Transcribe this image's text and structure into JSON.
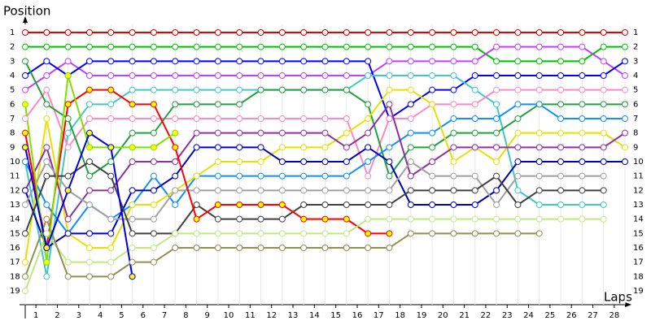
{
  "chart_data": {
    "type": "line",
    "y_label": "Position",
    "x_label": "Laps",
    "xlim": [
      0,
      28
    ],
    "ylim": [
      1,
      19
    ],
    "y_reversed": true,
    "grid": true,
    "x": [
      0,
      1,
      2,
      3,
      4,
      5,
      6,
      7,
      8,
      9,
      10,
      11,
      12,
      13,
      14,
      15,
      16,
      17,
      18,
      19,
      20,
      21,
      22,
      23,
      24,
      25,
      26,
      27,
      28
    ],
    "xticks": [
      {
        "value": 0.5,
        "label": "1"
      },
      {
        "value": 1.5,
        "label": "2"
      },
      {
        "value": 2.5,
        "label": "3"
      },
      {
        "value": 3.5,
        "label": "4"
      },
      {
        "value": 4.5,
        "label": "5"
      },
      {
        "value": 5.5,
        "label": "6"
      },
      {
        "value": 6.5,
        "label": "7"
      },
      {
        "value": 7.5,
        "label": "8"
      },
      {
        "value": 8.5,
        "label": "9"
      },
      {
        "value": 9.5,
        "label": "10"
      },
      {
        "value": 10.5,
        "label": "11"
      },
      {
        "value": 11.5,
        "label": "12"
      },
      {
        "value": 12.5,
        "label": "13"
      },
      {
        "value": 13.5,
        "label": "14"
      },
      {
        "value": 14.5,
        "label": "15"
      },
      {
        "value": 15.5,
        "label": "16"
      },
      {
        "value": 16.5,
        "label": "17"
      },
      {
        "value": 17.5,
        "label": "18"
      },
      {
        "value": 18.5,
        "label": "19"
      },
      {
        "value": 19.5,
        "label": "20"
      },
      {
        "value": 20.5,
        "label": "21"
      },
      {
        "value": 21.5,
        "label": "22"
      },
      {
        "value": 22.5,
        "label": "23"
      },
      {
        "value": 23.5,
        "label": "24"
      },
      {
        "value": 24.5,
        "label": "25"
      },
      {
        "value": 25.5,
        "label": "26"
      },
      {
        "value": 26.5,
        "label": "27"
      },
      {
        "value": 27.5,
        "label": "28"
      }
    ],
    "yticks": [
      1,
      2,
      3,
      4,
      5,
      6,
      7,
      8,
      9,
      10,
      11,
      12,
      13,
      14,
      15,
      16,
      17,
      18,
      19
    ],
    "series": [
      {
        "color": "#e00000",
        "marker_fill": "#ffffff",
        "values": [
          1,
          1,
          1,
          1,
          1,
          1,
          1,
          1,
          1,
          1,
          1,
          1,
          1,
          1,
          1,
          1,
          1,
          1,
          1,
          1,
          1,
          1,
          1,
          1,
          1,
          1,
          1,
          1,
          1
        ]
      },
      {
        "color": "#00c000",
        "marker_fill": "#ffffff",
        "values": [
          2,
          2,
          2,
          2,
          2,
          2,
          2,
          2,
          2,
          2,
          2,
          2,
          2,
          2,
          2,
          2,
          2,
          2,
          2,
          2,
          2,
          2,
          3,
          3,
          3,
          3,
          3,
          2,
          2
        ]
      },
      {
        "color": "#c040ff",
        "marker_fill": "#ffffff",
        "values": [
          5,
          4,
          3,
          4,
          4,
          4,
          4,
          4,
          4,
          4,
          4,
          4,
          4,
          4,
          4,
          4,
          4,
          3,
          3,
          3,
          3,
          3,
          2,
          2,
          2,
          2,
          2,
          3,
          4
        ]
      },
      {
        "color": "#0000ff",
        "marker_fill": "#ffffff",
        "values": [
          4,
          3,
          4,
          3,
          3,
          3,
          3,
          3,
          3,
          3,
          3,
          3,
          3,
          3,
          3,
          3,
          3,
          7,
          6,
          5,
          5,
          4,
          4,
          4,
          4,
          4,
          4,
          4,
          3
        ]
      },
      {
        "color": "#40c8c8",
        "marker_fill": "#ffffff",
        "values": [
          10,
          18,
          8,
          6,
          6,
          5,
          5,
          5,
          5,
          5,
          5,
          5,
          5,
          5,
          5,
          5,
          4,
          4,
          4,
          4,
          4,
          5,
          6,
          12,
          13,
          13,
          13,
          13,
          null
        ]
      },
      {
        "color": "#ff88c0",
        "marker_fill": "#ffffff",
        "values": [
          7,
          5,
          9,
          7,
          7,
          7,
          7,
          7,
          7,
          7,
          7,
          7,
          7,
          7,
          7,
          7,
          11,
          7,
          7,
          6,
          6,
          6,
          5,
          5,
          5,
          5,
          5,
          5,
          5
        ]
      },
      {
        "color": "#20a040",
        "marker_fill": "#ffffff",
        "values": [
          3,
          6,
          7,
          11,
          10,
          8,
          8,
          6,
          6,
          6,
          6,
          5,
          5,
          5,
          5,
          5,
          6,
          11,
          9,
          9,
          8,
          8,
          8,
          7,
          6,
          6,
          6,
          6,
          6
        ]
      },
      {
        "color": "#1090ff",
        "marker_fill": "#ffffff",
        "values": [
          10,
          13,
          15,
          13,
          14,
          13,
          11,
          13,
          11,
          11,
          11,
          11,
          11,
          11,
          11,
          11,
          10,
          9,
          8,
          8,
          7,
          7,
          7,
          6,
          6,
          7,
          7,
          7,
          7
        ]
      },
      {
        "color": "#e8e000",
        "marker_fill": "#ffffff",
        "values": [
          17,
          7,
          15,
          16,
          16,
          13,
          13,
          12,
          11,
          10,
          10,
          10,
          9,
          9,
          9,
          8,
          7,
          5,
          5,
          6,
          10,
          9,
          10,
          8,
          8,
          8,
          8,
          8,
          9
        ]
      },
      {
        "color": "#9030a0",
        "marker_fill": "#ffffff",
        "values": [
          12,
          9,
          14,
          12,
          12,
          10,
          10,
          10,
          8,
          8,
          8,
          8,
          8,
          8,
          8,
          9,
          8,
          6,
          11,
          10,
          9,
          9,
          9,
          9,
          9,
          9,
          9,
          9,
          8
        ]
      },
      {
        "color": "#0000c0",
        "marker_fill": "#ffffff",
        "values": [
          12,
          16,
          15,
          15,
          15,
          12,
          12,
          11,
          9,
          9,
          9,
          9,
          10,
          10,
          10,
          10,
          9,
          10,
          13,
          13,
          13,
          13,
          12,
          10,
          10,
          10,
          10,
          10,
          10
        ]
      },
      {
        "color": "#a0a0a0",
        "marker_fill": "#ffffff",
        "values": [
          13,
          10,
          12,
          13,
          14,
          14,
          14,
          12,
          12,
          12,
          12,
          12,
          12,
          12,
          12,
          12,
          12,
          12,
          10,
          11,
          11,
          11,
          13,
          11,
          11,
          11,
          11,
          11,
          null
        ]
      },
      {
        "color": "#404040",
        "marker_fill": "#ffffff",
        "values": [
          15,
          11,
          11,
          10,
          11,
          15,
          15,
          15,
          13,
          14,
          14,
          14,
          14,
          13,
          13,
          13,
          13,
          13,
          12,
          12,
          12,
          12,
          11,
          13,
          12,
          12,
          12,
          12,
          null
        ]
      },
      {
        "color": "#ff0000",
        "marker_fill": "#ffff00",
        "values": [
          8,
          16,
          6,
          5,
          5,
          6,
          6,
          9,
          14,
          13,
          13,
          13,
          13,
          14,
          14,
          14,
          15,
          15,
          null,
          null,
          null,
          null,
          null,
          null,
          null,
          null,
          null,
          null,
          null
        ]
      },
      {
        "color": "#c0e880",
        "marker_fill": "#ffffff",
        "values": [
          19,
          15,
          17,
          17,
          17,
          16,
          16,
          15,
          15,
          15,
          15,
          15,
          15,
          15,
          15,
          15,
          14,
          14,
          14,
          14,
          14,
          14,
          14,
          14,
          14,
          14,
          14,
          14,
          null
        ]
      },
      {
        "color": "#909050",
        "marker_fill": "#ffffff",
        "values": [
          18,
          14,
          18,
          18,
          18,
          17,
          17,
          16,
          16,
          16,
          16,
          16,
          16,
          16,
          16,
          16,
          16,
          16,
          15,
          15,
          15,
          15,
          15,
          15,
          15,
          null,
          null,
          null,
          null
        ]
      },
      {
        "color": "#80e000",
        "marker_fill": "#ffff00",
        "values": [
          6,
          17,
          4,
          9,
          9,
          9,
          9,
          8,
          null,
          null,
          null,
          null,
          null,
          null,
          null,
          null,
          null,
          null,
          null,
          null,
          null,
          null,
          null,
          null,
          null,
          null,
          null,
          null,
          null
        ]
      },
      {
        "color": "#0000e0",
        "marker_fill": "#ffff00",
        "values": [
          9,
          16,
          12,
          8,
          9,
          18,
          null,
          null,
          null,
          null,
          null,
          null,
          null,
          null,
          null,
          null,
          null,
          null,
          null,
          null,
          null,
          null,
          null,
          null,
          null,
          null,
          null,
          null,
          null
        ]
      }
    ]
  }
}
